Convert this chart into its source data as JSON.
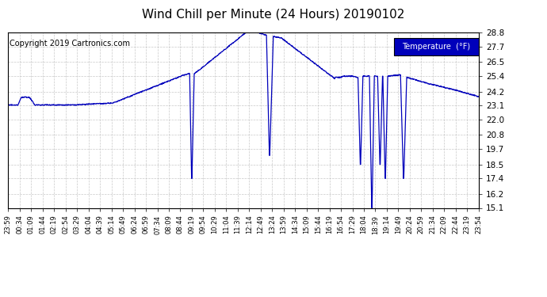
{
  "title": "Wind Chill per Minute (24 Hours) 20190102",
  "copyright": "Copyright 2019 Cartronics.com",
  "legend_label": "Temperature  (°F)",
  "line_color": "#0000bb",
  "background_color": "#ffffff",
  "grid_color": "#bbbbbb",
  "legend_bg": "#0000bb",
  "legend_text_color": "#ffffff",
  "ylim": [
    15.1,
    28.8
  ],
  "yticks": [
    15.1,
    16.2,
    17.4,
    18.5,
    19.7,
    20.8,
    22.0,
    23.1,
    24.2,
    25.4,
    26.5,
    27.7,
    28.8
  ],
  "xtick_labels": [
    "23:59",
    "00:34",
    "01:09",
    "01:44",
    "02:19",
    "02:54",
    "03:29",
    "04:04",
    "04:39",
    "05:14",
    "05:49",
    "06:24",
    "06:59",
    "07:34",
    "08:09",
    "08:44",
    "09:19",
    "09:54",
    "10:29",
    "11:04",
    "11:39",
    "12:14",
    "12:49",
    "13:24",
    "13:59",
    "14:34",
    "15:09",
    "15:44",
    "16:19",
    "16:54",
    "17:29",
    "18:04",
    "18:39",
    "19:14",
    "19:49",
    "20:24",
    "20:59",
    "21:34",
    "22:09",
    "22:44",
    "23:19",
    "23:54"
  ],
  "n_xticks": 42,
  "title_fontsize": 11,
  "copyright_fontsize": 7,
  "ytick_fontsize": 7.5,
  "xtick_fontsize": 6
}
